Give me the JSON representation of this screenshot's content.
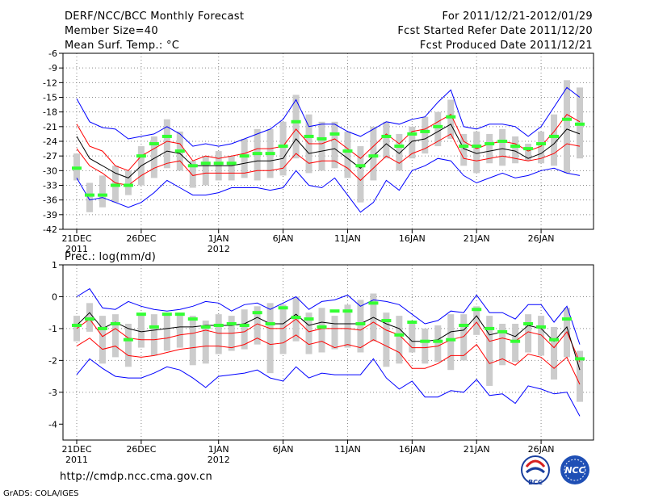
{
  "header": {
    "title": "DERF/NCC/BCC Monthly Forecast",
    "member_size": "Member Size=40",
    "variable": "Mean Surf. Temp.: °C",
    "forecast_period": "For 2011/12/21-2012/01/29",
    "start_date": "Fcst Started Refer Date 2011/12/20",
    "produced_date": "Fcst Produced Date 2011/12/21"
  },
  "footer": {
    "url": "http://cmdp.ncc.cma.gov.cn",
    "credit": "GrADS: COLA/IGES",
    "logo_bcc_text": "BCC",
    "logo_ncc_text": "NCC"
  },
  "colors": {
    "envelope": "#0000ff",
    "spread": "#ff0000",
    "mean": "#000000",
    "box": "#cccccc",
    "marker": "#33ff33",
    "grid": "#888888"
  },
  "chart_data": [
    {
      "type": "line",
      "title": "Mean Surf. Temp.: °C",
      "days": 39,
      "x_tick_labels": [
        "21DEC",
        "26DEC",
        "1JAN",
        "6JAN",
        "11JAN",
        "16JAN",
        "21JAN",
        "26JAN"
      ],
      "x_tick_days": [
        0,
        5,
        11,
        16,
        21,
        26,
        31,
        36
      ],
      "x_sub_labels": [
        {
          "day": 0,
          "text": "2011"
        },
        {
          "day": 11,
          "text": "2012"
        }
      ],
      "ylim": [
        -42,
        -6
      ],
      "y_ticks": [
        -42,
        -39,
        -36,
        -33,
        -30,
        -27,
        -24,
        -21,
        -18,
        -15,
        -12,
        -9,
        -6
      ],
      "series": [
        {
          "name": "max",
          "color": "#0000ff",
          "values": [
            -15.3,
            -20.0,
            -21.2,
            -21.5,
            -23.5,
            -23.0,
            -22.5,
            -21.0,
            -22.5,
            -25.0,
            -24.5,
            -25.0,
            -24.5,
            -23.5,
            -22.5,
            -21.5,
            -19.5,
            -15.5,
            -21.0,
            -20.5,
            -20.5,
            -22.0,
            -23.0,
            -21.5,
            -20.0,
            -20.5,
            -19.5,
            -19.0,
            -16.0,
            -13.5,
            -21.0,
            -21.5,
            -20.5,
            -20.5,
            -21.0,
            -23.0,
            -21.0,
            -17.0,
            -13.0,
            -15.0
          ]
        },
        {
          "name": "upper",
          "color": "#ff0000",
          "values": [
            -20.5,
            -25.0,
            -26.0,
            -29.0,
            -30.0,
            -27.0,
            -25.5,
            -24.0,
            -24.5,
            -28.0,
            -27.0,
            -27.5,
            -27.0,
            -26.5,
            -25.5,
            -25.5,
            -25.0,
            -21.5,
            -24.5,
            -24.5,
            -23.5,
            -25.5,
            -27.5,
            -25.0,
            -22.5,
            -24.5,
            -22.0,
            -21.5,
            -20.0,
            -18.5,
            -24.0,
            -25.5,
            -24.5,
            -24.0,
            -24.5,
            -26.0,
            -25.0,
            -22.0,
            -18.5,
            -20.0
          ]
        },
        {
          "name": "mean",
          "color": "#000000",
          "values": [
            -23.0,
            -27.5,
            -29.0,
            -30.5,
            -31.5,
            -29.0,
            -27.5,
            -26.0,
            -26.5,
            -29.0,
            -29.0,
            -29.0,
            -29.0,
            -28.5,
            -28.0,
            -28.0,
            -27.5,
            -23.5,
            -26.5,
            -26.0,
            -25.5,
            -27.5,
            -29.5,
            -27.0,
            -24.5,
            -26.5,
            -24.0,
            -23.5,
            -22.0,
            -20.5,
            -25.5,
            -26.5,
            -26.0,
            -25.5,
            -26.0,
            -27.5,
            -26.5,
            -24.5,
            -21.5,
            -22.5
          ]
        },
        {
          "name": "lower",
          "color": "#ff0000",
          "values": [
            -25.5,
            -29.0,
            -30.5,
            -32.5,
            -33.0,
            -31.0,
            -29.5,
            -28.5,
            -28.0,
            -31.0,
            -30.5,
            -30.5,
            -30.5,
            -30.5,
            -30.0,
            -30.0,
            -29.5,
            -26.5,
            -28.5,
            -28.0,
            -28.0,
            -29.5,
            -32.0,
            -29.5,
            -27.0,
            -28.5,
            -26.5,
            -25.5,
            -24.0,
            -22.5,
            -27.5,
            -28.0,
            -27.5,
            -27.0,
            -27.5,
            -28.0,
            -27.5,
            -26.5,
            -24.5,
            -25.0
          ]
        },
        {
          "name": "min",
          "color": "#0000ff",
          "values": [
            -31.5,
            -36.0,
            -35.5,
            -36.5,
            -37.5,
            -36.5,
            -34.5,
            -32.0,
            -33.5,
            -35.0,
            -35.0,
            -34.5,
            -33.5,
            -33.5,
            -33.5,
            -34.0,
            -33.5,
            -30.0,
            -33.0,
            -33.5,
            -31.5,
            -35.0,
            -38.5,
            -36.5,
            -32.0,
            -34.0,
            -30.0,
            -29.0,
            -27.5,
            -28.0,
            -31.0,
            -32.5,
            -31.5,
            -30.5,
            -31.5,
            -31.0,
            -30.0,
            -29.5,
            -30.5,
            -31.0
          ]
        }
      ],
      "boxes_low": [
        -32.0,
        -38.5,
        -37.5,
        -36.5,
        -35.0,
        -33.0,
        -31.5,
        -29.5,
        -30.0,
        -33.5,
        -33.0,
        -32.0,
        -32.0,
        -31.5,
        -32.0,
        -31.5,
        -31.0,
        -27.5,
        -30.5,
        -30.0,
        -29.5,
        -31.5,
        -36.5,
        -32.0,
        -27.5,
        -30.0,
        -27.5,
        -26.5,
        -25.0,
        -23.5,
        -29.0,
        -30.5,
        -28.5,
        -29.0,
        -28.5,
        -28.0,
        -28.5,
        -29.0,
        -30.5,
        -27.5
      ],
      "boxes_high": [
        -26.5,
        -32.5,
        -31.0,
        -29.0,
        -30.0,
        -25.0,
        -23.0,
        -19.5,
        -22.0,
        -28.0,
        -27.0,
        -26.0,
        -27.0,
        -23.5,
        -21.5,
        -21.5,
        -20.0,
        -14.5,
        -18.5,
        -20.0,
        -20.0,
        -22.0,
        -25.0,
        -21.0,
        -20.0,
        -22.5,
        -21.0,
        -19.0,
        -18.0,
        -15.5,
        -22.5,
        -22.0,
        -22.5,
        -21.5,
        -23.0,
        -24.5,
        -22.0,
        -18.5,
        -11.5,
        -13.0
      ],
      "markers": [
        -29.5,
        -35.0,
        -35.0,
        -33.0,
        -33.0,
        -27.0,
        -24.5,
        -23.0,
        -26.0,
        -29.0,
        -28.5,
        -28.5,
        -28.5,
        -27.0,
        -26.5,
        -26.5,
        -25.0,
        -20.0,
        -23.0,
        -23.5,
        -22.5,
        -26.0,
        -29.0,
        -27.0,
        -23.0,
        -25.0,
        -22.5,
        -22.0,
        -21.0,
        -19.0,
        -25.0,
        -25.0,
        -24.5,
        -24.0,
        -25.0,
        -25.5,
        -24.5,
        -23.0,
        -19.5,
        -20.5
      ]
    },
    {
      "type": "line",
      "title": "Prec.: log(mm/d)",
      "days": 39,
      "x_tick_labels": [
        "21DEC",
        "26DEC",
        "1JAN",
        "6JAN",
        "11JAN",
        "16JAN",
        "21JAN",
        "26JAN"
      ],
      "x_tick_days": [
        0,
        5,
        11,
        16,
        21,
        26,
        31,
        36
      ],
      "x_sub_labels": [
        {
          "day": 0,
          "text": "2011"
        },
        {
          "day": 11,
          "text": "2012"
        }
      ],
      "ylim": [
        -4.5,
        1
      ],
      "y_ticks": [
        -4,
        -3,
        -2,
        -1,
        0,
        1
      ],
      "series": [
        {
          "name": "max",
          "color": "#0000ff",
          "values": [
            0.0,
            0.25,
            -0.35,
            -0.4,
            -0.15,
            -0.3,
            -0.4,
            -0.45,
            -0.4,
            -0.3,
            -0.15,
            -0.2,
            -0.45,
            -0.25,
            -0.2,
            -0.4,
            -0.2,
            0.0,
            -0.4,
            -0.15,
            -0.1,
            0.05,
            -0.3,
            -0.1,
            -0.15,
            -0.25,
            -0.55,
            -0.85,
            -0.75,
            -0.45,
            -0.5,
            0.05,
            -0.5,
            -0.5,
            -0.7,
            -0.25,
            -0.25,
            -0.8,
            -0.3,
            -1.5
          ]
        },
        {
          "name": "upper",
          "color": "#ff0000",
          "values": [
            -1.0,
            -0.7,
            -1.25,
            -1.0,
            -1.3,
            -1.35,
            -1.35,
            -1.3,
            -1.2,
            -1.15,
            -1.05,
            -1.15,
            -1.15,
            -1.1,
            -0.85,
            -1.0,
            -1.0,
            -0.7,
            -1.1,
            -1.0,
            -1.0,
            -1.0,
            -1.05,
            -0.8,
            -1.05,
            -1.2,
            -1.6,
            -1.6,
            -1.55,
            -1.35,
            -1.25,
            -0.8,
            -1.4,
            -1.3,
            -1.4,
            -1.1,
            -1.2,
            -1.6,
            -1.1,
            -2.05
          ]
        },
        {
          "name": "mean",
          "color": "#000000",
          "values": [
            -0.9,
            -0.5,
            -1.0,
            -0.8,
            -1.0,
            -1.1,
            -1.05,
            -1.0,
            -0.95,
            -0.95,
            -0.9,
            -0.9,
            -0.9,
            -0.85,
            -0.65,
            -0.85,
            -0.85,
            -0.55,
            -0.9,
            -0.8,
            -0.85,
            -0.85,
            -0.85,
            -0.65,
            -0.85,
            -1.0,
            -1.4,
            -1.4,
            -1.35,
            -1.1,
            -1.05,
            -0.6,
            -1.2,
            -1.1,
            -1.25,
            -0.9,
            -1.0,
            -1.4,
            -0.95,
            -2.3
          ]
        },
        {
          "name": "lower",
          "color": "#ff0000",
          "values": [
            -1.55,
            -1.3,
            -1.65,
            -1.55,
            -1.85,
            -1.9,
            -1.85,
            -1.75,
            -1.65,
            -1.6,
            -1.55,
            -1.55,
            -1.6,
            -1.5,
            -1.3,
            -1.5,
            -1.45,
            -1.2,
            -1.5,
            -1.4,
            -1.6,
            -1.5,
            -1.6,
            -1.35,
            -1.55,
            -1.75,
            -2.25,
            -2.25,
            -2.1,
            -1.85,
            -1.85,
            -1.5,
            -2.1,
            -1.95,
            -2.15,
            -1.8,
            -1.9,
            -2.25,
            -1.9,
            -2.75
          ]
        },
        {
          "name": "min",
          "color": "#0000ff",
          "values": [
            -2.45,
            -1.95,
            -2.25,
            -2.5,
            -2.55,
            -2.55,
            -2.4,
            -2.2,
            -2.3,
            -2.55,
            -2.85,
            -2.5,
            -2.45,
            -2.4,
            -2.3,
            -2.55,
            -2.65,
            -2.2,
            -2.55,
            -2.4,
            -2.45,
            -2.45,
            -2.45,
            -1.95,
            -2.55,
            -2.9,
            -2.65,
            -3.15,
            -3.15,
            -2.95,
            -3.0,
            -2.6,
            -3.1,
            -3.05,
            -3.35,
            -2.8,
            -2.9,
            -3.05,
            -3.0,
            -3.75
          ]
        },
        {
          "name": "lower2",
          "color": "#ff0000",
          "values": []
        }
      ],
      "boxes_low": [
        -1.4,
        -1.1,
        -2.1,
        -1.9,
        -2.2,
        -1.6,
        -1.85,
        -1.7,
        -1.6,
        -2.15,
        -2.1,
        -1.8,
        -1.7,
        -1.65,
        -1.5,
        -2.4,
        -1.8,
        -1.4,
        -1.8,
        -1.75,
        -1.65,
        -1.6,
        -1.75,
        -1.4,
        -2.2,
        -2.1,
        -1.75,
        -2.1,
        -2.05,
        -2.3,
        -2.0,
        -1.2,
        -2.8,
        -2.15,
        -2.05,
        -1.75,
        -1.85,
        -2.6,
        -1.9,
        -3.3
      ],
      "boxes_high": [
        -0.6,
        -0.2,
        -0.6,
        -0.55,
        -0.85,
        -0.55,
        -0.55,
        -0.5,
        -0.5,
        -0.6,
        -0.75,
        -0.55,
        -0.6,
        -0.4,
        -0.3,
        -0.2,
        -0.25,
        0.0,
        -0.5,
        -0.35,
        -0.6,
        -0.25,
        -0.1,
        0.1,
        -0.5,
        -0.6,
        -0.8,
        -1.0,
        -0.9,
        -0.55,
        -0.55,
        -0.3,
        -0.6,
        -0.85,
        -0.85,
        -0.55,
        -0.6,
        -0.95,
        -0.35,
        -1.7
      ],
      "markers": [
        -0.9,
        -0.7,
        -1.0,
        -0.85,
        -1.35,
        -0.55,
        -0.95,
        -0.55,
        -0.55,
        -0.7,
        -0.95,
        -0.9,
        -0.85,
        -0.9,
        -0.5,
        -0.85,
        -0.35,
        -0.65,
        -0.7,
        -0.95,
        -0.45,
        -0.45,
        -0.85,
        -0.2,
        -0.75,
        -1.2,
        -0.8,
        -1.4,
        -1.4,
        -1.35,
        -0.9,
        -0.4,
        -1.0,
        -1.1,
        -1.4,
        -0.85,
        -0.95,
        -1.35,
        -0.7,
        -1.95
      ]
    }
  ]
}
